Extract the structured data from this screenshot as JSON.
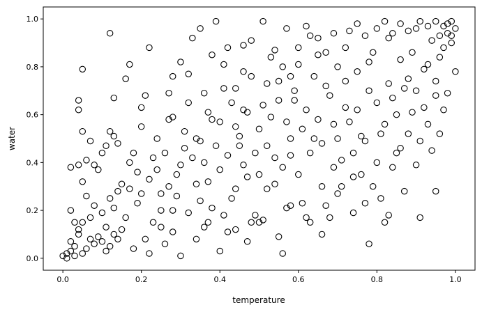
{
  "chart_data": {
    "type": "scatter",
    "title": "",
    "xlabel": "temperature",
    "ylabel": "water",
    "xlim": [
      -0.05,
      1.05
    ],
    "ylim": [
      -0.05,
      1.05
    ],
    "xticks": [
      "0.0",
      "0.2",
      "0.4",
      "0.6",
      "0.8",
      "1.0"
    ],
    "yticks": [
      "0.0",
      "0.2",
      "0.4",
      "0.6",
      "0.8",
      "1.0"
    ],
    "grid": false,
    "marker": "open-circle",
    "marker_color": "#000000",
    "points": [
      [
        0.0,
        0.01
      ],
      [
        0.01,
        0.0
      ],
      [
        0.01,
        0.02
      ],
      [
        0.02,
        0.03
      ],
      [
        0.02,
        0.07
      ],
      [
        0.03,
        0.05
      ],
      [
        0.03,
        0.01
      ],
      [
        0.04,
        0.1
      ],
      [
        0.04,
        0.12
      ],
      [
        0.05,
        0.02
      ],
      [
        0.06,
        0.04
      ],
      [
        0.07,
        0.08
      ],
      [
        0.08,
        0.06
      ],
      [
        0.09,
        0.09
      ],
      [
        0.1,
        0.07
      ],
      [
        0.11,
        0.03
      ],
      [
        0.12,
        0.05
      ],
      [
        0.13,
        0.1
      ],
      [
        0.14,
        0.08
      ],
      [
        0.15,
        0.12
      ],
      [
        0.02,
        0.2
      ],
      [
        0.03,
        0.15
      ],
      [
        0.05,
        0.15
      ],
      [
        0.06,
        0.26
      ],
      [
        0.07,
        0.17
      ],
      [
        0.08,
        0.22
      ],
      [
        0.1,
        0.19
      ],
      [
        0.12,
        0.25
      ],
      [
        0.14,
        0.28
      ],
      [
        0.16,
        0.17
      ],
      [
        0.04,
        0.39
      ],
      [
        0.05,
        0.32
      ],
      [
        0.06,
        0.41
      ],
      [
        0.07,
        0.49
      ],
      [
        0.08,
        0.39
      ],
      [
        0.1,
        0.44
      ],
      [
        0.11,
        0.47
      ],
      [
        0.12,
        0.53
      ],
      [
        0.13,
        0.51
      ],
      [
        0.14,
        0.48
      ],
      [
        0.04,
        0.62
      ],
      [
        0.04,
        0.66
      ],
      [
        0.05,
        0.79
      ],
      [
        0.05,
        0.53
      ],
      [
        0.12,
        0.94
      ],
      [
        0.13,
        0.67
      ],
      [
        0.16,
        0.75
      ],
      [
        0.17,
        0.81
      ],
      [
        0.17,
        0.29
      ],
      [
        0.18,
        0.44
      ],
      [
        0.19,
        0.36
      ],
      [
        0.2,
        0.55
      ],
      [
        0.2,
        0.63
      ],
      [
        0.21,
        0.68
      ],
      [
        0.22,
        0.88
      ],
      [
        0.23,
        0.42
      ],
      [
        0.24,
        0.5
      ],
      [
        0.25,
        0.27
      ],
      [
        0.25,
        0.13
      ],
      [
        0.26,
        0.06
      ],
      [
        0.27,
        0.58
      ],
      [
        0.27,
        0.69
      ],
      [
        0.28,
        0.76
      ],
      [
        0.28,
        0.2
      ],
      [
        0.29,
        0.35
      ],
      [
        0.3,
        0.82
      ],
      [
        0.31,
        0.46
      ],
      [
        0.32,
        0.65
      ],
      [
        0.33,
        0.92
      ],
      [
        0.34,
        0.31
      ],
      [
        0.34,
        0.5
      ],
      [
        0.35,
        0.24
      ],
      [
        0.36,
        0.4
      ],
      [
        0.36,
        0.69
      ],
      [
        0.37,
        0.15
      ],
      [
        0.38,
        0.58
      ],
      [
        0.38,
        0.85
      ],
      [
        0.39,
        0.99
      ],
      [
        0.4,
        0.37
      ],
      [
        0.41,
        0.71
      ],
      [
        0.42,
        0.88
      ],
      [
        0.42,
        0.11
      ],
      [
        0.43,
        0.25
      ],
      [
        0.44,
        0.55
      ],
      [
        0.45,
        0.47
      ],
      [
        0.46,
        0.62
      ],
      [
        0.46,
        0.89
      ],
      [
        0.47,
        0.34
      ],
      [
        0.48,
        0.76
      ],
      [
        0.49,
        0.18
      ],
      [
        0.5,
        0.54
      ],
      [
        0.51,
        0.99
      ],
      [
        0.51,
        0.64
      ],
      [
        0.52,
        0.29
      ],
      [
        0.53,
        0.84
      ],
      [
        0.54,
        0.42
      ],
      [
        0.55,
        0.74
      ],
      [
        0.56,
        0.02
      ],
      [
        0.57,
        0.57
      ],
      [
        0.57,
        0.96
      ],
      [
        0.58,
        0.43
      ],
      [
        0.59,
        0.66
      ],
      [
        0.6,
        0.81
      ],
      [
        0.61,
        0.23
      ],
      [
        0.62,
        0.62
      ],
      [
        0.63,
        0.93
      ],
      [
        0.64,
        0.5
      ],
      [
        0.65,
        0.85
      ],
      [
        0.66,
        0.3
      ],
      [
        0.67,
        0.72
      ],
      [
        0.68,
        0.17
      ],
      [
        0.69,
        0.56
      ],
      [
        0.7,
        0.8
      ],
      [
        0.71,
        0.41
      ],
      [
        0.72,
        0.63
      ],
      [
        0.73,
        0.95
      ],
      [
        0.74,
        0.34
      ],
      [
        0.75,
        0.78
      ],
      [
        0.76,
        0.51
      ],
      [
        0.77,
        0.23
      ],
      [
        0.78,
        0.06
      ],
      [
        0.78,
        0.7
      ],
      [
        0.79,
        0.86
      ],
      [
        0.8,
        0.4
      ],
      [
        0.81,
        0.25
      ],
      [
        0.82,
        0.56
      ],
      [
        0.83,
        0.92
      ],
      [
        0.83,
        0.18
      ],
      [
        0.84,
        0.67
      ],
      [
        0.85,
        0.44
      ],
      [
        0.86,
        0.83
      ],
      [
        0.87,
        0.28
      ],
      [
        0.88,
        0.75
      ],
      [
        0.89,
        0.61
      ],
      [
        0.9,
        0.96
      ],
      [
        0.9,
        0.39
      ],
      [
        0.91,
        0.17
      ],
      [
        0.92,
        0.79
      ],
      [
        0.93,
        0.56
      ],
      [
        0.94,
        0.91
      ],
      [
        0.95,
        0.68
      ],
      [
        0.95,
        0.28
      ],
      [
        0.96,
        0.84
      ],
      [
        0.97,
        0.97
      ],
      [
        0.98,
        0.94
      ],
      [
        0.99,
        0.99
      ],
      [
        1.0,
        0.96
      ],
      [
        1.0,
        0.78
      ],
      [
        0.99,
        0.9
      ],
      [
        0.97,
        0.62
      ],
      [
        0.15,
        0.31
      ],
      [
        0.17,
        0.4
      ],
      [
        0.19,
        0.23
      ],
      [
        0.21,
        0.08
      ],
      [
        0.22,
        0.33
      ],
      [
        0.23,
        0.15
      ],
      [
        0.24,
        0.37
      ],
      [
        0.26,
        0.44
      ],
      [
        0.27,
        0.3
      ],
      [
        0.28,
        0.11
      ],
      [
        0.29,
        0.26
      ],
      [
        0.3,
        0.39
      ],
      [
        0.31,
        0.53
      ],
      [
        0.32,
        0.19
      ],
      [
        0.33,
        0.42
      ],
      [
        0.35,
        0.49
      ],
      [
        0.36,
        0.13
      ],
      [
        0.37,
        0.32
      ],
      [
        0.38,
        0.21
      ],
      [
        0.39,
        0.47
      ],
      [
        0.4,
        0.57
      ],
      [
        0.41,
        0.18
      ],
      [
        0.42,
        0.43
      ],
      [
        0.43,
        0.65
      ],
      [
        0.44,
        0.29
      ],
      [
        0.45,
        0.51
      ],
      [
        0.46,
        0.39
      ],
      [
        0.47,
        0.61
      ],
      [
        0.48,
        0.15
      ],
      [
        0.49,
        0.44
      ],
      [
        0.5,
        0.35
      ],
      [
        0.51,
        0.16
      ],
      [
        0.52,
        0.47
      ],
      [
        0.53,
        0.59
      ],
      [
        0.54,
        0.31
      ],
      [
        0.55,
        0.66
      ],
      [
        0.56,
        0.38
      ],
      [
        0.57,
        0.21
      ],
      [
        0.58,
        0.5
      ],
      [
        0.59,
        0.7
      ],
      [
        0.6,
        0.35
      ],
      [
        0.61,
        0.54
      ],
      [
        0.62,
        0.17
      ],
      [
        0.63,
        0.44
      ],
      [
        0.64,
        0.76
      ],
      [
        0.65,
        0.58
      ],
      [
        0.66,
        0.48
      ],
      [
        0.67,
        0.22
      ],
      [
        0.68,
        0.68
      ],
      [
        0.69,
        0.38
      ],
      [
        0.7,
        0.5
      ],
      [
        0.71,
        0.3
      ],
      [
        0.72,
        0.74
      ],
      [
        0.73,
        0.57
      ],
      [
        0.74,
        0.44
      ],
      [
        0.75,
        0.62
      ],
      [
        0.76,
        0.35
      ],
      [
        0.77,
        0.49
      ],
      [
        0.78,
        0.82
      ],
      [
        0.79,
        0.3
      ],
      [
        0.8,
        0.65
      ],
      [
        0.81,
        0.52
      ],
      [
        0.82,
        0.15
      ],
      [
        0.83,
        0.73
      ],
      [
        0.84,
        0.38
      ],
      [
        0.85,
        0.6
      ],
      [
        0.86,
        0.46
      ],
      [
        0.87,
        0.71
      ],
      [
        0.88,
        0.52
      ],
      [
        0.89,
        0.86
      ],
      [
        0.9,
        0.7
      ],
      [
        0.91,
        0.49
      ],
      [
        0.92,
        0.63
      ],
      [
        0.93,
        0.81
      ],
      [
        0.94,
        0.45
      ],
      [
        0.95,
        0.74
      ],
      [
        0.96,
        0.52
      ],
      [
        0.97,
        0.88
      ],
      [
        0.98,
        0.69
      ],
      [
        0.99,
        0.93
      ],
      [
        0.02,
        0.38
      ],
      [
        0.09,
        0.37
      ],
      [
        0.11,
        0.13
      ],
      [
        0.13,
        0.21
      ],
      [
        0.18,
        0.04
      ],
      [
        0.2,
        0.27
      ],
      [
        0.22,
        0.02
      ],
      [
        0.25,
        0.2
      ],
      [
        0.3,
        0.01
      ],
      [
        0.34,
        0.08
      ],
      [
        0.4,
        0.03
      ],
      [
        0.44,
        0.12
      ],
      [
        0.47,
        0.07
      ],
      [
        0.5,
        0.15
      ],
      [
        0.55,
        0.09
      ],
      [
        0.58,
        0.22
      ],
      [
        0.63,
        0.15
      ],
      [
        0.66,
        0.1
      ],
      [
        0.7,
        0.27
      ],
      [
        0.74,
        0.19
      ],
      [
        0.28,
        0.59
      ],
      [
        0.32,
        0.77
      ],
      [
        0.35,
        0.96
      ],
      [
        0.37,
        0.61
      ],
      [
        0.41,
        0.81
      ],
      [
        0.44,
        0.71
      ],
      [
        0.46,
        0.78
      ],
      [
        0.48,
        0.91
      ],
      [
        0.52,
        0.73
      ],
      [
        0.54,
        0.87
      ],
      [
        0.56,
        0.8
      ],
      [
        0.58,
        0.76
      ],
      [
        0.6,
        0.88
      ],
      [
        0.62,
        0.97
      ],
      [
        0.65,
        0.92
      ],
      [
        0.67,
        0.86
      ],
      [
        0.69,
        0.94
      ],
      [
        0.72,
        0.88
      ],
      [
        0.75,
        0.98
      ],
      [
        0.77,
        0.93
      ],
      [
        0.8,
        0.96
      ],
      [
        0.82,
        0.99
      ],
      [
        0.84,
        0.94
      ],
      [
        0.86,
        0.98
      ],
      [
        0.88,
        0.95
      ],
      [
        0.91,
        0.99
      ],
      [
        0.93,
        0.97
      ],
      [
        0.95,
        0.99
      ],
      [
        0.96,
        0.93
      ],
      [
        0.98,
        0.98
      ]
    ]
  }
}
